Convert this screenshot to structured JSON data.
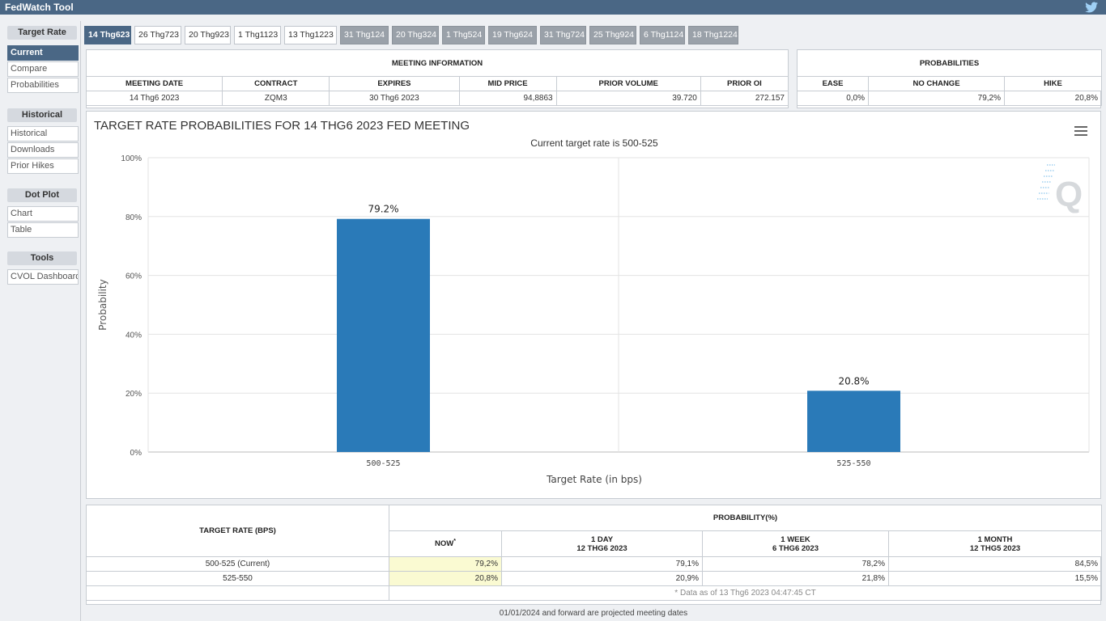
{
  "app": {
    "title": "FedWatch Tool"
  },
  "sidebar": {
    "groups": [
      {
        "heading": "Target Rate",
        "items": [
          "Current",
          "Compare",
          "Probabilities"
        ]
      },
      {
        "heading": "Historical",
        "items": [
          "Historical",
          "Downloads",
          "Prior Hikes"
        ]
      },
      {
        "heading": "Dot Plot",
        "items": [
          "Chart",
          "Table"
        ]
      },
      {
        "heading": "Tools",
        "items": [
          "CVOL Dashboard"
        ]
      }
    ],
    "active_item": "Current"
  },
  "tabs": [
    "14 Thg623",
    "26 Thg723",
    "20 Thg923",
    "1 Thg1123",
    "13 Thg1223",
    "31 Thg124",
    "20 Thg324",
    "1 Thg524",
    "19 Thg624",
    "31 Thg724",
    "25 Thg924",
    "6 Thg1124",
    "18 Thg1224"
  ],
  "meeting_info": {
    "heading": "MEETING INFORMATION",
    "columns": [
      "MEETING DATE",
      "CONTRACT",
      "EXPIRES",
      "MID PRICE",
      "PRIOR VOLUME",
      "PRIOR OI"
    ],
    "row": [
      "14 Thg6 2023",
      "ZQM3",
      "30 Thg6 2023",
      "94,8863",
      "39.720",
      "272.157"
    ]
  },
  "probabilities": {
    "heading": "PROBABILITIES",
    "columns": [
      "EASE",
      "NO CHANGE",
      "HIKE"
    ],
    "row": [
      "0,0%",
      "79,2%",
      "20,8%"
    ]
  },
  "chart": {
    "title": "TARGET RATE PROBABILITIES FOR 14 THG6 2023 FED MEETING",
    "subtitle": "Current target rate is 500-525",
    "watermark": "Q",
    "colors": {
      "bar": "#2a7ab8",
      "grid": "#e3e3e3"
    }
  },
  "chart_data": {
    "type": "bar",
    "categories": [
      "500-525",
      "525-550"
    ],
    "values": [
      79.2,
      20.8
    ],
    "data_labels": [
      "79.2%",
      "20.8%"
    ],
    "xlabel": "Target Rate (in bps)",
    "ylabel": "Probability",
    "ylim": [
      0,
      100
    ],
    "yticks": [
      "0%",
      "20%",
      "40%",
      "60%",
      "80%",
      "100%"
    ],
    "grid": true
  },
  "prob_table": {
    "row_header": "TARGET RATE (BPS)",
    "group_header": "PROBABILITY(%)",
    "columns": [
      {
        "label": "NOW",
        "sub": "",
        "mark": "*"
      },
      {
        "label": "1 DAY",
        "sub": "12 THG6 2023"
      },
      {
        "label": "1 WEEK",
        "sub": "6 THG6 2023"
      },
      {
        "label": "1 MONTH",
        "sub": "12 THG5 2023"
      }
    ],
    "rows": [
      {
        "rate": "500-525 (Current)",
        "values": [
          "79,2%",
          "79,1%",
          "78,2%",
          "84,5%"
        ]
      },
      {
        "rate": "525-550",
        "values": [
          "20,8%",
          "20,9%",
          "21,8%",
          "15,5%"
        ]
      }
    ],
    "as_of": "* Data as of 13 Thg6 2023 04:47:45 CT"
  },
  "footnote": "01/01/2024 and forward are projected meeting dates"
}
